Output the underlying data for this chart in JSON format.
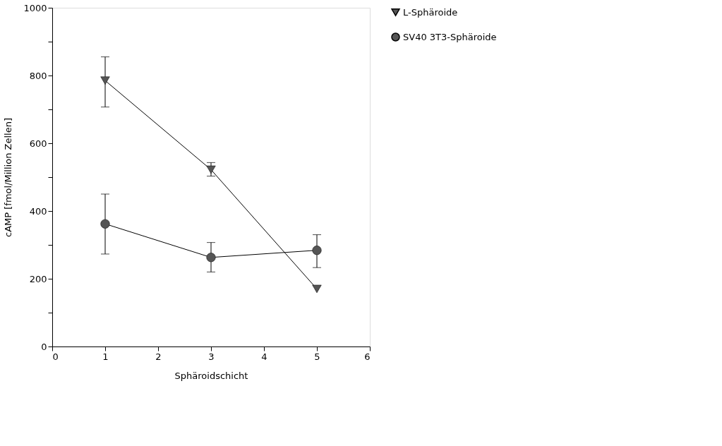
{
  "chart_data": {
    "type": "line",
    "xlabel": "Sphäroidschicht",
    "ylabel": "cAMP [fmol/Million Zellen]",
    "x": [
      1,
      3,
      5
    ],
    "series": [
      {
        "name": "L-Sphäroide",
        "color": "#555555",
        "marker": "triangle-down",
        "values": [
          785,
          522,
          170
        ],
        "errors": [
          [
            707,
            855
          ],
          [
            503,
            543
          ],
          null
        ]
      },
      {
        "name": "SV40 3T3-Sphäroide",
        "color": "#555555",
        "marker": "circle",
        "values": [
          362,
          263,
          284
        ],
        "errors": [
          [
            273,
            450
          ],
          [
            220,
            307
          ],
          [
            233,
            330
          ]
        ]
      }
    ],
    "xlim": [
      0,
      6
    ],
    "xticks": [
      0,
      1,
      2,
      3,
      4,
      5,
      6
    ],
    "ylim": [
      0,
      1000
    ],
    "yticks": [
      0,
      {
        "value": 100,
        "label": null
      },
      200,
      {
        "value": 300,
        "label": null
      },
      400,
      {
        "value": 500,
        "label": null
      },
      600,
      {
        "value": 700,
        "label": null
      },
      800,
      {
        "value": 900,
        "label": null
      },
      1000
    ],
    "grid": false,
    "legend": "right",
    "line_style": "solid"
  }
}
